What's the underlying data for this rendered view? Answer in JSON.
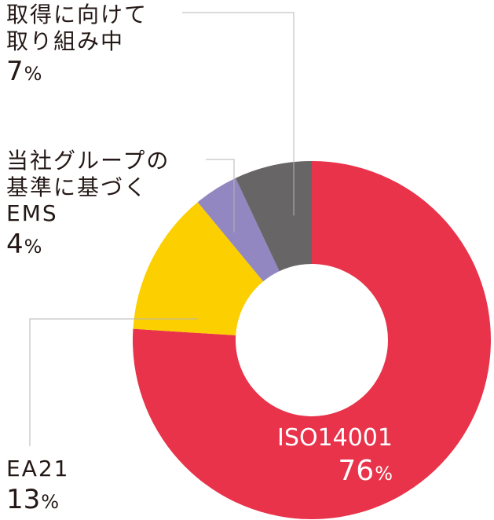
{
  "chart_data": {
    "type": "pie",
    "title": "",
    "labels": [
      "ISO14001",
      "EA21",
      "当社グループの基準に基づくEMS",
      "取得に向けて取り組み中"
    ],
    "values": [
      76,
      13,
      4,
      7
    ],
    "value_suffix": "%",
    "colors": [
      "#e8334a",
      "#fccf00",
      "#9287c1",
      "#686567"
    ],
    "legend": "none"
  },
  "labels": {
    "iso": {
      "name": "ISO14001",
      "value": "76",
      "sign": "%"
    },
    "ea21": {
      "name": "EA21",
      "value": "13",
      "sign": "%"
    },
    "group_ems": {
      "line1": "当社グループの",
      "line2": "基準に基づく",
      "line3": "EMS",
      "value": "4",
      "sign": "%"
    },
    "in_progress": {
      "line1": "取得に向けて",
      "line2": "取り組み中",
      "value": "7",
      "sign": "%"
    }
  }
}
